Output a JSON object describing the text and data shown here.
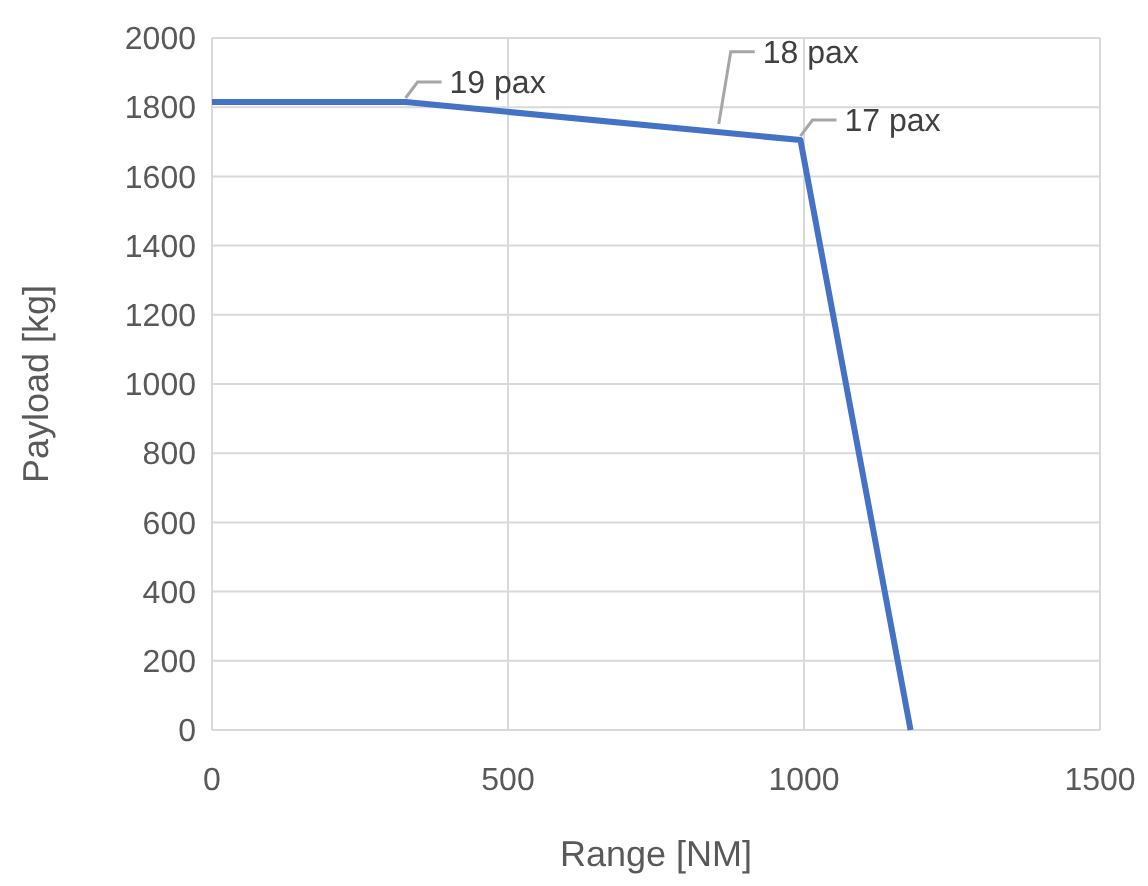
{
  "chart_data": {
    "type": "line",
    "xlabel": "Range [NM]",
    "ylabel": "Payload [kg]",
    "x": [
      0,
      327,
      994,
      1180
    ],
    "series": [
      {
        "color": "#4472c4",
        "values": [
          1815,
          1815,
          1705,
          0
        ]
      }
    ],
    "xlim": [
      0,
      1500
    ],
    "xticks": [
      0,
      500,
      1000,
      1500
    ],
    "ylim": [
      0,
      2000
    ],
    "yticks": [
      0,
      200,
      400,
      600,
      800,
      1000,
      1200,
      1400,
      1600,
      1800,
      2000
    ],
    "grid": true,
    "marker": "none",
    "line_style": "solid",
    "annotations": [
      {
        "text": "19 pax",
        "x": 327,
        "y": 1815
      },
      {
        "text": "18 pax",
        "x": 856,
        "y": 1740
      },
      {
        "text": "17 pax",
        "x": 994,
        "y": 1705
      }
    ]
  }
}
